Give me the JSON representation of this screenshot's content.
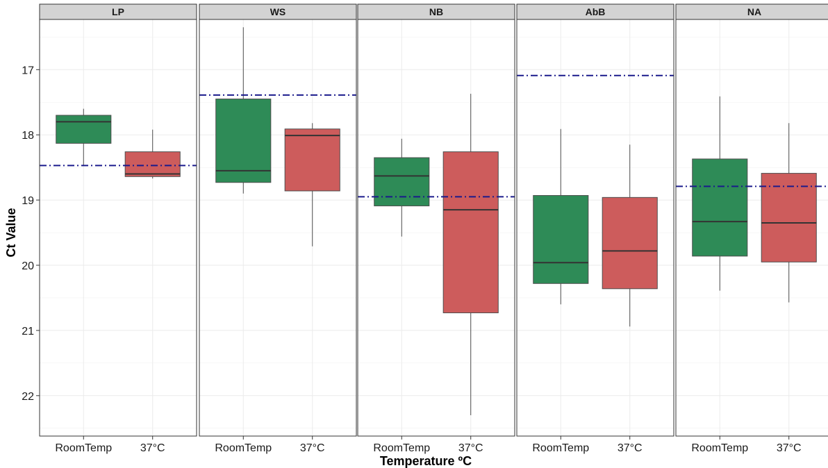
{
  "chart_data": {
    "type": "boxplot",
    "xlabel": "Temperature ºC",
    "ylabel": "Ct Value",
    "y_reversed": true,
    "ylim": [
      16.23,
      22.62
    ],
    "yticks": [
      17,
      18,
      19,
      20,
      21,
      22
    ],
    "categories": [
      "RoomTemp",
      "37°C"
    ],
    "colors": {
      "RoomTemp": "#2e8b57",
      "37°C": "#cd5c5c",
      "reference_line": "#1a1a8c",
      "strip": "#d3d3d3"
    },
    "grid": true,
    "legend": "none",
    "panels": [
      {
        "name": "LP",
        "reference": 18.47,
        "boxes": [
          {
            "group": "RoomTemp",
            "whisker_low": 17.6,
            "q1": 17.7,
            "median": 17.8,
            "q3": 18.13,
            "whisker_high": 18.47
          },
          {
            "group": "37°C",
            "whisker_low": 17.92,
            "q1": 18.26,
            "median": 18.6,
            "q3": 18.64,
            "whisker_high": 18.67
          }
        ]
      },
      {
        "name": "WS",
        "reference": 17.39,
        "boxes": [
          {
            "group": "RoomTemp",
            "whisker_low": 16.35,
            "q1": 17.45,
            "median": 18.55,
            "q3": 18.73,
            "whisker_high": 18.9
          },
          {
            "group": "37°C",
            "whisker_low": 17.82,
            "q1": 17.91,
            "median": 18.01,
            "q3": 18.86,
            "whisker_high": 19.71
          }
        ]
      },
      {
        "name": "NB",
        "reference": 18.95,
        "boxes": [
          {
            "group": "RoomTemp",
            "whisker_low": 18.06,
            "q1": 18.35,
            "median": 18.63,
            "q3": 19.09,
            "whisker_high": 19.56
          },
          {
            "group": "37°C",
            "whisker_low": 17.37,
            "q1": 18.26,
            "median": 19.15,
            "q3": 20.73,
            "whisker_high": 22.3
          }
        ]
      },
      {
        "name": "AbB",
        "reference": 17.09,
        "boxes": [
          {
            "group": "RoomTemp",
            "whisker_low": 17.91,
            "q1": 18.93,
            "median": 19.96,
            "q3": 20.28,
            "whisker_high": 20.6
          },
          {
            "group": "37°C",
            "whisker_low": 18.15,
            "q1": 18.96,
            "median": 19.78,
            "q3": 20.36,
            "whisker_high": 20.94
          }
        ]
      },
      {
        "name": "NA",
        "reference": 18.79,
        "boxes": [
          {
            "group": "RoomTemp",
            "whisker_low": 17.41,
            "q1": 18.37,
            "median": 19.33,
            "q3": 19.86,
            "whisker_high": 20.39
          },
          {
            "group": "37°C",
            "whisker_low": 17.82,
            "q1": 18.59,
            "median": 19.35,
            "q3": 19.95,
            "whisker_high": 20.57
          }
        ]
      }
    ]
  }
}
